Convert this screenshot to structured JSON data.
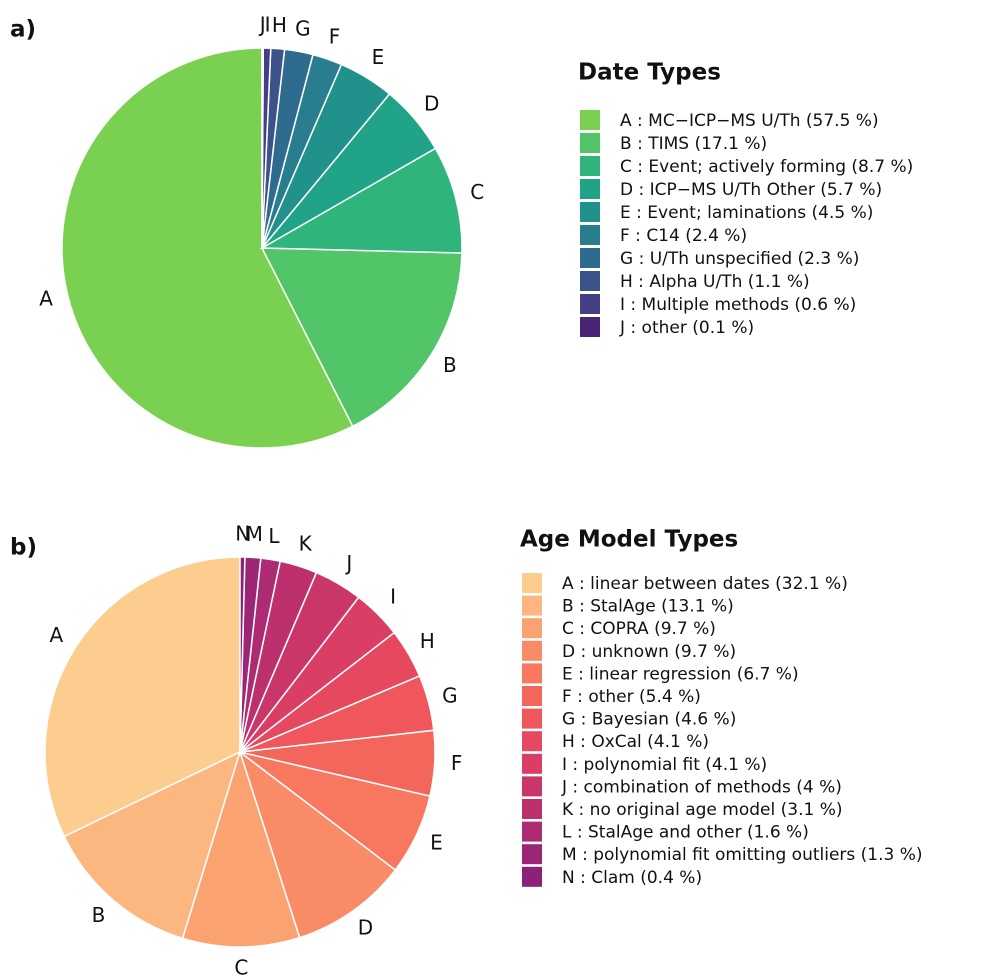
{
  "chart_data": [
    {
      "type": "pie",
      "panel": "a)",
      "title": "Date Types",
      "categories": [
        "A",
        "B",
        "C",
        "D",
        "E",
        "F",
        "G",
        "H",
        "I",
        "J"
      ],
      "legend_labels": [
        "A : MC−ICP−MS U/Th (57.5 %)",
        "B : TIMS (17.1 %)",
        "C : Event; actively forming (8.7 %)",
        "D : ICP−MS U/Th Other (5.7 %)",
        "E : Event; laminations (4.5 %)",
        "F : C14 (2.4 %)",
        "G : U/Th unspecified (2.3 %)",
        "H : Alpha U/Th (1.1 %)",
        "I : Multiple methods (0.6 %)",
        "J : other (0.1 %)"
      ],
      "values": [
        57.5,
        17.1,
        8.7,
        5.7,
        4.5,
        2.4,
        2.3,
        1.1,
        0.6,
        0.1
      ],
      "colors": [
        "#7ad151",
        "#52c569",
        "#2fb47c",
        "#20a386",
        "#21918c",
        "#287d8e",
        "#2f6b8e",
        "#3b528b",
        "#433e85",
        "#482475"
      ]
    },
    {
      "type": "pie",
      "panel": "b)",
      "title": "Age Model Types",
      "categories": [
        "A",
        "B",
        "C",
        "D",
        "E",
        "F",
        "G",
        "H",
        "I",
        "J",
        "K",
        "L",
        "M",
        "N"
      ],
      "legend_labels": [
        "A : linear between dates (32.1 %)",
        "B : StalAge (13.1 %)",
        "C : COPRA (9.7 %)",
        "D : unknown (9.7 %)",
        "E : linear regression (6.7 %)",
        "F : other (5.4 %)",
        "G : Bayesian (4.6 %)",
        "H : OxCal (4.1 %)",
        "I : polynomial fit (4.1 %)",
        "J : combination of methods (4 %)",
        "K : no original age model (3.1 %)",
        "L : StalAge and other (1.6 %)",
        "M : polynomial fit omitting outliers (1.3 %)",
        "N : Clam (0.4 %)"
      ],
      "values": [
        32.1,
        13.1,
        9.7,
        9.7,
        6.7,
        5.4,
        4.6,
        4.1,
        4.1,
        4,
        3.1,
        1.6,
        1.3,
        0.4
      ],
      "colors": [
        "#fccd8f",
        "#fbb77f",
        "#fba271",
        "#f98c67",
        "#f7775f",
        "#f4665c",
        "#ef575c",
        "#e6485f",
        "#da3e64",
        "#cb3669",
        "#bb306d",
        "#ac2b72",
        "#9c2675",
        "#8b2277"
      ]
    }
  ]
}
